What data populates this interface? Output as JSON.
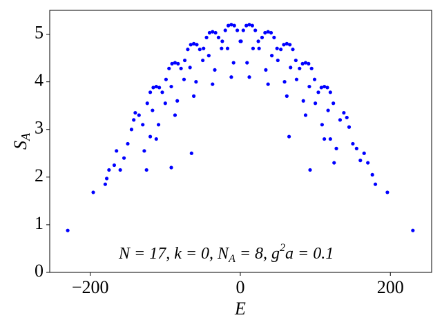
{
  "chart_data": {
    "type": "scatter",
    "color": "#0000ff",
    "x_label": "E",
    "y_label_parts": [
      "S",
      "A"
    ],
    "annotation_parts": [
      "N = 17,  k = 0,  N",
      "A",
      " = 8,  g",
      "2",
      "a = 0.1"
    ],
    "xlim": [
      -254,
      255
    ],
    "ylim": [
      0,
      5.5
    ],
    "xticks": [
      {
        "value": -200,
        "label": "−200"
      },
      0,
      200
    ],
    "yticks": [
      0,
      1,
      2,
      3,
      4,
      5
    ],
    "x": [
      -230,
      -196,
      -180,
      -178,
      -175,
      -168,
      -165,
      -160,
      -155,
      -150,
      -145,
      -142,
      -140,
      -135,
      -130,
      -128,
      -125,
      -120,
      -92,
      -65,
      230,
      196,
      180,
      176,
      170,
      165,
      160,
      155,
      150,
      145,
      142,
      138,
      133,
      128,
      125,
      120,
      93,
      65,
      -124,
      -120,
      -116,
      -112,
      -108,
      -104,
      -100,
      -117,
      -109,
      -112,
      -99,
      -95,
      -91,
      -87,
      -83,
      -79,
      -75,
      -92,
      -84,
      -87,
      -74,
      -70,
      -66,
      -62,
      -58,
      -54,
      -50,
      -67,
      -59,
      -62,
      -49,
      -45,
      -41,
      -37,
      -33,
      -29,
      -25,
      -42,
      -34,
      -37,
      -24,
      -20,
      -16,
      -12,
      -8,
      -4,
      0,
      -17,
      -9,
      -12,
      124,
      120,
      116,
      112,
      108,
      104,
      100,
      117,
      109,
      112,
      99,
      95,
      91,
      87,
      83,
      79,
      75,
      92,
      84,
      87,
      74,
      70,
      66,
      62,
      58,
      54,
      50,
      67,
      59,
      62,
      49,
      45,
      41,
      37,
      33,
      29,
      25,
      42,
      34,
      37,
      24,
      20,
      16,
      12,
      8,
      4,
      1,
      17,
      9,
      12
    ],
    "values": [
      0.88,
      1.68,
      1.85,
      1.97,
      2.15,
      2.25,
      2.55,
      2.15,
      2.4,
      2.7,
      3.0,
      3.2,
      3.35,
      3.3,
      3.1,
      2.55,
      2.15,
      2.85,
      2.2,
      2.5,
      0.88,
      1.68,
      1.85,
      2.05,
      2.3,
      2.5,
      2.35,
      2.6,
      2.7,
      3.05,
      3.25,
      3.35,
      3.2,
      2.6,
      2.3,
      2.8,
      2.15,
      2.85,
      3.55,
      3.78,
      3.88,
      3.9,
      3.88,
      3.78,
      3.55,
      3.4,
      3.1,
      2.8,
      4.05,
      4.28,
      4.38,
      4.4,
      4.38,
      4.28,
      4.05,
      3.9,
      3.6,
      3.3,
      4.45,
      4.68,
      4.78,
      4.8,
      4.78,
      4.68,
      4.45,
      4.3,
      4.0,
      3.7,
      4.7,
      4.93,
      5.03,
      5.05,
      5.03,
      4.93,
      4.7,
      4.55,
      4.25,
      3.95,
      4.85,
      5.08,
      5.18,
      5.2,
      5.18,
      5.08,
      4.85,
      4.7,
      4.4,
      4.1,
      3.55,
      3.78,
      3.88,
      3.9,
      3.88,
      3.78,
      3.55,
      3.4,
      3.1,
      2.8,
      4.05,
      4.28,
      4.38,
      4.4,
      4.38,
      4.28,
      4.05,
      3.9,
      3.6,
      3.3,
      4.45,
      4.68,
      4.78,
      4.8,
      4.78,
      4.68,
      4.45,
      4.3,
      4.0,
      3.7,
      4.7,
      4.93,
      5.03,
      5.05,
      5.03,
      4.93,
      4.7,
      4.55,
      4.25,
      3.95,
      4.85,
      5.08,
      5.18,
      5.2,
      5.18,
      5.08,
      4.85,
      4.7,
      4.4,
      4.1
    ]
  }
}
